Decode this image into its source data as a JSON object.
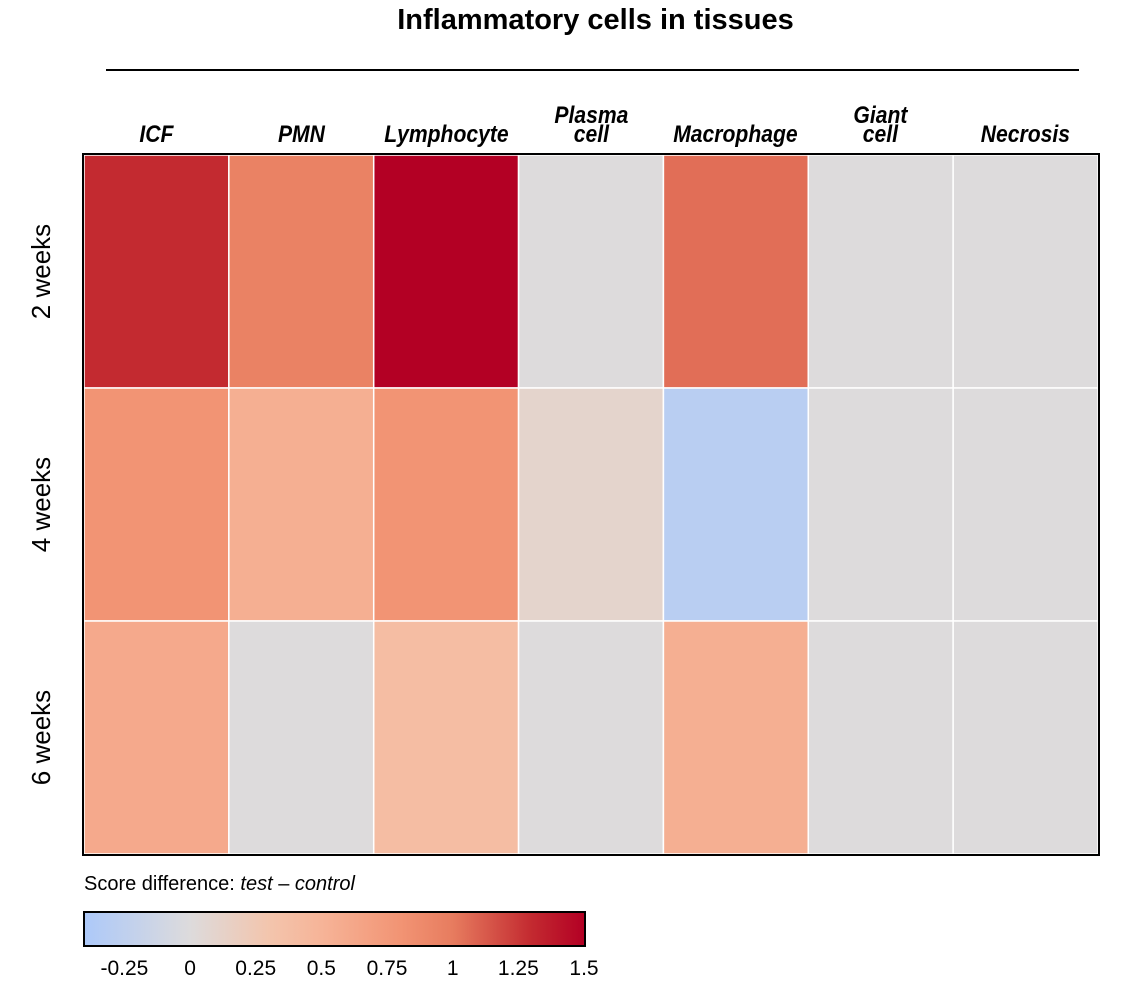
{
  "chart_data": {
    "type": "heatmap",
    "title": "Inflammatory cells in tissues",
    "columns": [
      [
        "ICF"
      ],
      [
        "PMN"
      ],
      [
        "Lymphocyte"
      ],
      [
        "Plasma",
        "cell"
      ],
      [
        "Macrophage"
      ],
      [
        "Giant",
        "cell"
      ],
      [
        "Necrosis"
      ]
    ],
    "rows": [
      "2 weeks",
      "4 weeks",
      "6 weeks"
    ],
    "values": [
      [
        1.3,
        0.95,
        1.5,
        0.0,
        1.05,
        0.0,
        0.0
      ],
      [
        0.8,
        0.55,
        0.8,
        0.1,
        -0.3,
        0.0,
        0.0
      ],
      [
        0.6,
        0.0,
        0.4,
        0.0,
        0.55,
        0.0,
        0.0
      ]
    ],
    "colorbar": {
      "title_prefix": "Score difference: ",
      "title_test": "test",
      "title_sep": " – ",
      "title_control": "control",
      "min": -0.4,
      "max": 1.5,
      "ticks": [
        -0.25,
        0,
        0.25,
        0.5,
        0.75,
        1,
        1.25,
        1.5
      ],
      "tick_labels": [
        "-0.25",
        "0",
        "0.25",
        "0.5",
        "0.75",
        "1",
        "1.25",
        "1.5"
      ],
      "stops": [
        {
          "value": -0.4,
          "color": "#adc9f9"
        },
        {
          "value": 0.0,
          "color": "#dddbdc"
        },
        {
          "value": 0.3,
          "color": "#f3c5ad"
        },
        {
          "value": 0.5,
          "color": "#f6b498"
        },
        {
          "value": 0.8,
          "color": "#f29474"
        },
        {
          "value": 1.0,
          "color": "#e77c5f"
        },
        {
          "value": 1.3,
          "color": "#c32a30"
        },
        {
          "value": 1.5,
          "color": "#b30024"
        }
      ]
    }
  }
}
